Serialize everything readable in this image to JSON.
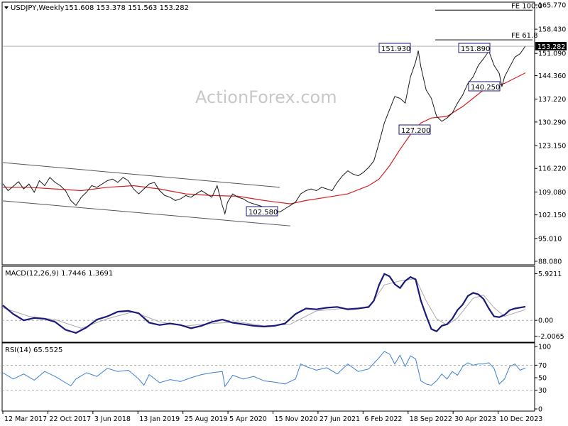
{
  "header": {
    "title": "USDJPY,Weekly",
    "ohlc": "151.608 153.378 151.563 153.282"
  },
  "watermark": "ActionForex.com",
  "colors": {
    "price": "#1a1a1a",
    "ma": "#d42020",
    "channel": "#555555",
    "macd": "#1a1a7a",
    "signal": "#aaaaaa",
    "rsi": "#3a7fd5",
    "label_border": "#1a1a7a",
    "level": "#000000"
  },
  "chart_data": [
    {
      "type": "line",
      "name": "price",
      "ylim": [
        88.08,
        165.77
      ],
      "y_ticks": [
        "165.770",
        "158.430",
        "151.090",
        "144.360",
        "137.220",
        "130.290",
        "123.150",
        "116.220",
        "109.080",
        "102.150",
        "95.010",
        "88.080"
      ],
      "last_price": "153.282",
      "x_ticks": [
        "12 Mar 2017",
        "22 Oct 2017",
        "3 Jun 2018",
        "13 Jan 2019",
        "25 Aug 2019",
        "5 Apr 2020",
        "15 Nov 2020",
        "27 Jun 2021",
        "6 Feb 2022",
        "18 Sep 2022",
        "30 Apr 2023",
        "10 Dec 2023"
      ],
      "levels": [
        {
          "label": "FE 100.0",
          "value": 164.2
        },
        {
          "label": "FE 61.8",
          "value": 155.2
        }
      ],
      "annotations": [
        {
          "text": "151.930",
          "value": 151.93
        },
        {
          "text": "151.890",
          "value": 151.89
        },
        {
          "text": "140.250",
          "value": 140.25
        },
        {
          "text": "127.200",
          "value": 127.2
        },
        {
          "text": "102.580",
          "value": 102.58
        }
      ],
      "channel": {
        "upper": [
          [
            0,
            118.0
          ],
          [
            0.53,
            110.5
          ]
        ],
        "lower": [
          [
            0,
            106.4
          ],
          [
            0.55,
            98.8
          ]
        ]
      },
      "price_path": [
        [
          0.0,
          111.6
        ],
        [
          0.01,
          109.5
        ],
        [
          0.02,
          110.8
        ],
        [
          0.03,
          112.2
        ],
        [
          0.04,
          110.0
        ],
        [
          0.05,
          111.5
        ],
        [
          0.06,
          109.0
        ],
        [
          0.07,
          112.5
        ],
        [
          0.08,
          111.0
        ],
        [
          0.09,
          113.5
        ],
        [
          0.1,
          112.0
        ],
        [
          0.11,
          111.0
        ],
        [
          0.12,
          109.5
        ],
        [
          0.13,
          106.5
        ],
        [
          0.14,
          105.0
        ],
        [
          0.15,
          107.5
        ],
        [
          0.16,
          109.0
        ],
        [
          0.17,
          111.0
        ],
        [
          0.18,
          110.5
        ],
        [
          0.19,
          111.5
        ],
        [
          0.2,
          112.5
        ],
        [
          0.21,
          113.0
        ],
        [
          0.22,
          112.0
        ],
        [
          0.23,
          113.5
        ],
        [
          0.24,
          112.5
        ],
        [
          0.25,
          110.0
        ],
        [
          0.26,
          108.5
        ],
        [
          0.27,
          110.0
        ],
        [
          0.28,
          111.5
        ],
        [
          0.29,
          112.0
        ],
        [
          0.3,
          109.5
        ],
        [
          0.31,
          108.0
        ],
        [
          0.32,
          107.5
        ],
        [
          0.33,
          106.5
        ],
        [
          0.34,
          107.0
        ],
        [
          0.35,
          108.0
        ],
        [
          0.36,
          107.5
        ],
        [
          0.37,
          108.5
        ],
        [
          0.38,
          109.5
        ],
        [
          0.39,
          108.5
        ],
        [
          0.4,
          107.5
        ],
        [
          0.41,
          111.0
        ],
        [
          0.42,
          105.0
        ],
        [
          0.425,
          102.5
        ],
        [
          0.43,
          106.0
        ],
        [
          0.44,
          108.5
        ],
        [
          0.45,
          107.5
        ],
        [
          0.46,
          107.0
        ],
        [
          0.47,
          106.0
        ],
        [
          0.48,
          105.5
        ],
        [
          0.49,
          105.0
        ],
        [
          0.5,
          104.5
        ],
        [
          0.51,
          104.0
        ],
        [
          0.52,
          103.5
        ],
        [
          0.53,
          103.0
        ],
        [
          0.54,
          104.0
        ],
        [
          0.55,
          105.0
        ],
        [
          0.56,
          106.0
        ],
        [
          0.57,
          108.5
        ],
        [
          0.58,
          109.5
        ],
        [
          0.59,
          110.0
        ],
        [
          0.6,
          109.5
        ],
        [
          0.61,
          110.5
        ],
        [
          0.62,
          110.0
        ],
        [
          0.63,
          109.5
        ],
        [
          0.64,
          112.0
        ],
        [
          0.65,
          114.0
        ],
        [
          0.66,
          115.5
        ],
        [
          0.67,
          114.5
        ],
        [
          0.68,
          114.0
        ],
        [
          0.69,
          115.0
        ],
        [
          0.7,
          116.5
        ],
        [
          0.71,
          118.5
        ],
        [
          0.72,
          124.0
        ],
        [
          0.73,
          130.0
        ],
        [
          0.74,
          134.0
        ],
        [
          0.75,
          138.0
        ],
        [
          0.76,
          137.5
        ],
        [
          0.77,
          136.0
        ],
        [
          0.78,
          144.0
        ],
        [
          0.79,
          148.5
        ],
        [
          0.795,
          151.9
        ],
        [
          0.8,
          147.0
        ],
        [
          0.81,
          140.0
        ],
        [
          0.82,
          137.5
        ],
        [
          0.83,
          132.0
        ],
        [
          0.84,
          130.5
        ],
        [
          0.85,
          131.5
        ],
        [
          0.86,
          133.0
        ],
        [
          0.87,
          136.0
        ],
        [
          0.88,
          138.5
        ],
        [
          0.89,
          142.0
        ],
        [
          0.9,
          144.0
        ],
        [
          0.91,
          147.5
        ],
        [
          0.92,
          149.5
        ],
        [
          0.93,
          151.8
        ],
        [
          0.94,
          147.5
        ],
        [
          0.95,
          145.0
        ],
        [
          0.955,
          141.0
        ],
        [
          0.96,
          144.0
        ],
        [
          0.97,
          147.0
        ],
        [
          0.98,
          150.0
        ],
        [
          0.99,
          151.0
        ],
        [
          1.0,
          153.3
        ]
      ],
      "ma_path": [
        [
          0.0,
          110.5
        ],
        [
          0.05,
          110.5
        ],
        [
          0.1,
          110.0
        ],
        [
          0.15,
          109.5
        ],
        [
          0.2,
          110.5
        ],
        [
          0.25,
          111.0
        ],
        [
          0.3,
          110.0
        ],
        [
          0.35,
          108.5
        ],
        [
          0.4,
          108.0
        ],
        [
          0.45,
          107.8
        ],
        [
          0.5,
          106.5
        ],
        [
          0.55,
          105.5
        ],
        [
          0.58,
          106.5
        ],
        [
          0.62,
          107.5
        ],
        [
          0.66,
          108.5
        ],
        [
          0.7,
          111.0
        ],
        [
          0.72,
          113.0
        ],
        [
          0.74,
          117.0
        ],
        [
          0.76,
          122.0
        ],
        [
          0.78,
          126.5
        ],
        [
          0.8,
          130.0
        ],
        [
          0.82,
          131.5
        ],
        [
          0.85,
          132.0
        ],
        [
          0.88,
          135.0
        ],
        [
          0.9,
          137.5
        ],
        [
          0.92,
          140.0
        ],
        [
          0.94,
          141.0
        ],
        [
          0.96,
          142.0
        ],
        [
          1.0,
          145.2
        ]
      ]
    },
    {
      "type": "line",
      "name": "MACD",
      "label": "MACD(12,26,9) 1.7446 1.3691",
      "ylim": [
        -2.6,
        6.6
      ],
      "y_ticks": [
        "5.9211",
        "0.00",
        "-2.0065"
      ],
      "zero": 0,
      "macd_path": [
        [
          0.0,
          1.9
        ],
        [
          0.02,
          0.8
        ],
        [
          0.04,
          0.0
        ],
        [
          0.06,
          0.3
        ],
        [
          0.08,
          0.2
        ],
        [
          0.1,
          -0.2
        ],
        [
          0.12,
          -1.2
        ],
        [
          0.14,
          -1.6
        ],
        [
          0.16,
          -0.9
        ],
        [
          0.18,
          0.1
        ],
        [
          0.2,
          0.5
        ],
        [
          0.22,
          1.1
        ],
        [
          0.24,
          1.2
        ],
        [
          0.26,
          0.9
        ],
        [
          0.28,
          -0.3
        ],
        [
          0.3,
          -0.6
        ],
        [
          0.32,
          -0.4
        ],
        [
          0.34,
          -0.6
        ],
        [
          0.36,
          -1.0
        ],
        [
          0.38,
          -0.7
        ],
        [
          0.4,
          -0.2
        ],
        [
          0.42,
          0.1
        ],
        [
          0.44,
          -0.3
        ],
        [
          0.46,
          -0.5
        ],
        [
          0.48,
          -0.7
        ],
        [
          0.5,
          -0.8
        ],
        [
          0.52,
          -0.7
        ],
        [
          0.54,
          -0.4
        ],
        [
          0.56,
          0.8
        ],
        [
          0.58,
          1.5
        ],
        [
          0.6,
          1.4
        ],
        [
          0.62,
          1.6
        ],
        [
          0.64,
          1.7
        ],
        [
          0.66,
          1.4
        ],
        [
          0.68,
          1.5
        ],
        [
          0.7,
          1.7
        ],
        [
          0.71,
          2.5
        ],
        [
          0.72,
          4.5
        ],
        [
          0.73,
          5.9
        ],
        [
          0.74,
          5.6
        ],
        [
          0.75,
          4.6
        ],
        [
          0.76,
          4.1
        ],
        [
          0.77,
          5.0
        ],
        [
          0.78,
          5.5
        ],
        [
          0.79,
          5.2
        ],
        [
          0.8,
          2.5
        ],
        [
          0.81,
          0.6
        ],
        [
          0.82,
          -1.1
        ],
        [
          0.83,
          -1.4
        ],
        [
          0.84,
          -0.7
        ],
        [
          0.85,
          -0.5
        ],
        [
          0.86,
          0.2
        ],
        [
          0.87,
          1.3
        ],
        [
          0.88,
          2.0
        ],
        [
          0.89,
          3.1
        ],
        [
          0.9,
          3.5
        ],
        [
          0.91,
          3.3
        ],
        [
          0.92,
          2.7
        ],
        [
          0.93,
          1.5
        ],
        [
          0.94,
          0.5
        ],
        [
          0.95,
          0.4
        ],
        [
          0.96,
          0.7
        ],
        [
          0.97,
          1.3
        ],
        [
          0.98,
          1.5
        ],
        [
          1.0,
          1.74
        ]
      ],
      "signal_path": [
        [
          0.0,
          1.6
        ],
        [
          0.05,
          0.5
        ],
        [
          0.1,
          0.1
        ],
        [
          0.15,
          -1.0
        ],
        [
          0.2,
          0.2
        ],
        [
          0.25,
          1.1
        ],
        [
          0.3,
          -0.2
        ],
        [
          0.35,
          -0.7
        ],
        [
          0.4,
          -0.4
        ],
        [
          0.45,
          -0.2
        ],
        [
          0.5,
          -0.7
        ],
        [
          0.55,
          -0.5
        ],
        [
          0.6,
          1.2
        ],
        [
          0.65,
          1.5
        ],
        [
          0.7,
          1.6
        ],
        [
          0.73,
          4.5
        ],
        [
          0.76,
          5.0
        ],
        [
          0.79,
          5.3
        ],
        [
          0.81,
          2.5
        ],
        [
          0.83,
          0.2
        ],
        [
          0.85,
          -0.6
        ],
        [
          0.87,
          0.3
        ],
        [
          0.9,
          2.8
        ],
        [
          0.92,
          3.2
        ],
        [
          0.94,
          1.6
        ],
        [
          0.96,
          0.5
        ],
        [
          1.0,
          1.37
        ]
      ]
    },
    {
      "type": "line",
      "name": "RSI",
      "label": "RSI(14) 65.5525",
      "ylim": [
        0,
        100
      ],
      "y_ticks": [
        "100",
        "70",
        "50",
        "30",
        "0"
      ],
      "levels": [
        70,
        30
      ],
      "rsi_path": [
        [
          0.0,
          58
        ],
        [
          0.02,
          48
        ],
        [
          0.04,
          56
        ],
        [
          0.06,
          46
        ],
        [
          0.08,
          60
        ],
        [
          0.1,
          52
        ],
        [
          0.12,
          42
        ],
        [
          0.13,
          37
        ],
        [
          0.14,
          48
        ],
        [
          0.16,
          58
        ],
        [
          0.18,
          52
        ],
        [
          0.2,
          65
        ],
        [
          0.22,
          60
        ],
        [
          0.24,
          62
        ],
        [
          0.26,
          48
        ],
        [
          0.27,
          38
        ],
        [
          0.28,
          55
        ],
        [
          0.3,
          42
        ],
        [
          0.32,
          47
        ],
        [
          0.34,
          44
        ],
        [
          0.36,
          50
        ],
        [
          0.38,
          55
        ],
        [
          0.4,
          58
        ],
        [
          0.42,
          60
        ],
        [
          0.425,
          36
        ],
        [
          0.44,
          54
        ],
        [
          0.46,
          48
        ],
        [
          0.48,
          52
        ],
        [
          0.5,
          45
        ],
        [
          0.52,
          43
        ],
        [
          0.54,
          40
        ],
        [
          0.56,
          48
        ],
        [
          0.57,
          72
        ],
        [
          0.58,
          68
        ],
        [
          0.6,
          62
        ],
        [
          0.62,
          66
        ],
        [
          0.64,
          56
        ],
        [
          0.66,
          72
        ],
        [
          0.68,
          60
        ],
        [
          0.7,
          64
        ],
        [
          0.72,
          82
        ],
        [
          0.73,
          92
        ],
        [
          0.74,
          88
        ],
        [
          0.75,
          72
        ],
        [
          0.76,
          86
        ],
        [
          0.77,
          68
        ],
        [
          0.78,
          85
        ],
        [
          0.79,
          80
        ],
        [
          0.8,
          45
        ],
        [
          0.81,
          40
        ],
        [
          0.82,
          38
        ],
        [
          0.83,
          45
        ],
        [
          0.84,
          56
        ],
        [
          0.85,
          48
        ],
        [
          0.86,
          60
        ],
        [
          0.87,
          54
        ],
        [
          0.88,
          68
        ],
        [
          0.89,
          74
        ],
        [
          0.9,
          70
        ],
        [
          0.91,
          72
        ],
        [
          0.92,
          72
        ],
        [
          0.93,
          74
        ],
        [
          0.94,
          65
        ],
        [
          0.95,
          40
        ],
        [
          0.96,
          48
        ],
        [
          0.97,
          68
        ],
        [
          0.98,
          72
        ],
        [
          0.99,
          62
        ],
        [
          1.0,
          65.5
        ]
      ]
    }
  ]
}
